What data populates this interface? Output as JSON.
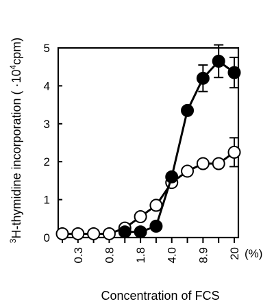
{
  "chart_data": {
    "type": "line",
    "title": "",
    "xlabel": "Concentration of FCS",
    "x_unit": "(%)",
    "ylabel_parts": [
      "3",
      "H-thymidine incorporation ( ·10",
      "4",
      "cpm)"
    ],
    "ylim": [
      0,
      5
    ],
    "yticks": [
      "0",
      "1",
      "2",
      "3",
      "4",
      "5"
    ],
    "x_positions": [
      "0.1",
      "0.3",
      "0.5",
      "0.8",
      "1.2",
      "1.8",
      "2.6",
      "4.0",
      "5.9",
      "8.9",
      "13",
      "20"
    ],
    "xtick_labels": [
      "0.3",
      "0.8",
      "1.8",
      "4.0",
      "8.9",
      "20"
    ],
    "grid": false,
    "legend": "none",
    "series": [
      {
        "marker": "open-circle",
        "values": [
          0.1,
          0.1,
          0.1,
          0.1,
          0.25,
          0.55,
          0.85,
          1.45,
          1.75,
          1.95,
          1.95,
          2.25
        ],
        "error": [
          0,
          0,
          0,
          0,
          0,
          0,
          0,
          0,
          0,
          0,
          0,
          0.38
        ]
      },
      {
        "marker": "filled-circle",
        "values": [
          null,
          null,
          null,
          null,
          0.15,
          0.15,
          0.3,
          1.6,
          3.35,
          4.2,
          4.65,
          4.35
        ],
        "error": [
          0,
          0,
          0,
          0,
          0,
          0,
          0,
          0,
          0,
          0.35,
          0.43,
          0.4
        ]
      }
    ]
  }
}
